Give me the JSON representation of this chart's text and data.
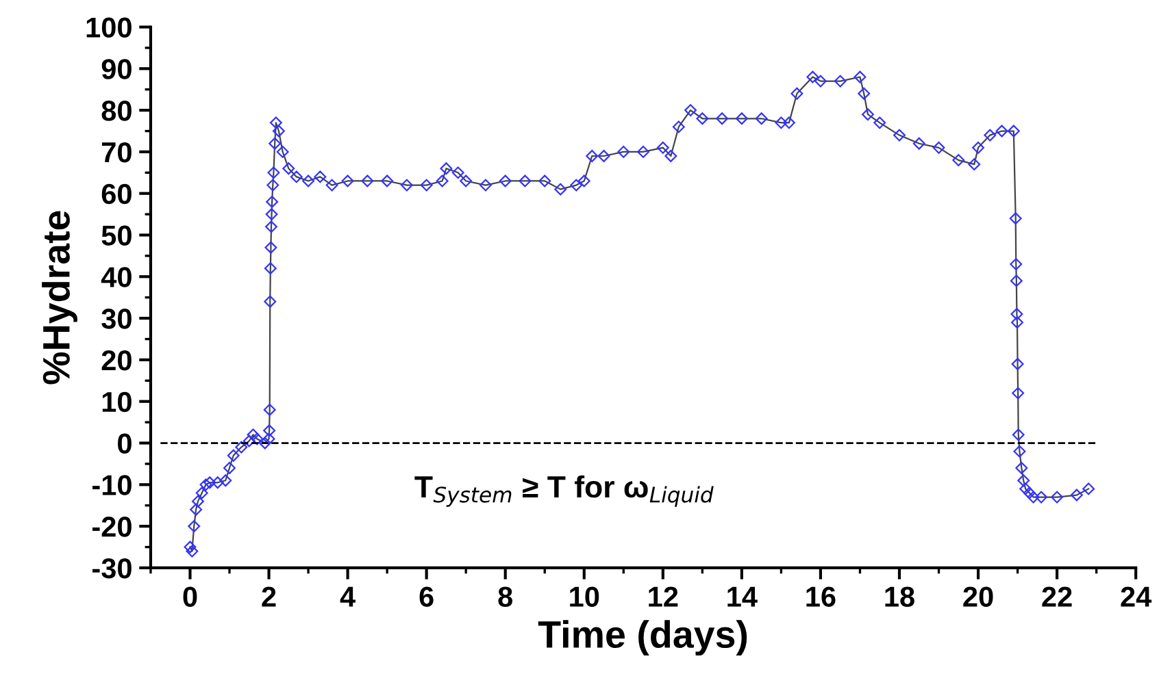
{
  "chart_data": {
    "type": "line",
    "xlabel": "Time (days)",
    "ylabel": "%Hydrate",
    "xlim": [
      -1,
      24
    ],
    "ylim": [
      -30,
      100
    ],
    "xticks": [
      0,
      2,
      4,
      6,
      8,
      10,
      12,
      14,
      16,
      18,
      20,
      22,
      24
    ],
    "yticks": [
      -30,
      -20,
      -10,
      0,
      10,
      20,
      30,
      40,
      50,
      60,
      70,
      80,
      90,
      100
    ],
    "grid": false,
    "legend": false,
    "marker": "diamond",
    "line_style": "solid",
    "ref_lines": [
      {
        "axis": "y",
        "value": 0,
        "line_style": "dashed",
        "color": "#000000"
      }
    ],
    "annotations": [
      {
        "text": "T$_{System}$ ≥ T for ω$_{Liquid}$"
      }
    ],
    "series": [
      {
        "color": "#3333ff",
        "x": [
          0.0,
          0.05,
          0.1,
          0.15,
          0.2,
          0.3,
          0.4,
          0.5,
          0.7,
          0.9,
          1.0,
          1.1,
          1.3,
          1.5,
          1.6,
          1.7,
          1.9,
          2.0,
          2.01,
          2.02,
          2.03,
          2.04,
          2.05,
          2.06,
          2.07,
          2.08,
          2.1,
          2.12,
          2.15,
          2.18,
          2.25,
          2.35,
          2.5,
          2.7,
          3.0,
          3.3,
          3.6,
          4.0,
          4.5,
          5.0,
          5.5,
          6.0,
          6.4,
          6.5,
          6.8,
          7.0,
          7.5,
          8.0,
          8.5,
          9.0,
          9.4,
          9.8,
          10.0,
          10.2,
          10.5,
          11.0,
          11.5,
          12.0,
          12.2,
          12.4,
          12.7,
          13.0,
          13.5,
          14.0,
          14.5,
          15.0,
          15.2,
          15.4,
          15.8,
          16.0,
          16.5,
          17.0,
          17.1,
          17.2,
          17.5,
          18.0,
          18.5,
          19.0,
          19.5,
          19.9,
          20.0,
          20.3,
          20.6,
          20.9,
          20.95,
          20.96,
          20.97,
          20.98,
          20.99,
          21.0,
          21.01,
          21.02,
          21.05,
          21.1,
          21.15,
          21.2,
          21.3,
          21.4,
          21.6,
          22.0,
          22.5,
          22.8
        ],
        "values": [
          -25,
          -26,
          -20,
          -16,
          -14,
          -12,
          -10,
          -9.5,
          -9.5,
          -9,
          -6,
          -3,
          -1,
          0.5,
          2,
          1,
          0,
          1,
          3,
          8,
          34,
          42,
          47,
          52,
          55,
          58,
          62,
          65,
          72,
          77,
          75,
          70,
          66,
          64,
          63,
          64,
          62,
          63,
          63,
          63,
          62,
          62,
          63,
          66,
          65,
          63,
          62,
          63,
          63,
          63,
          61,
          62,
          63,
          69,
          69,
          70,
          70,
          71,
          69,
          76,
          80,
          78,
          78,
          78,
          78,
          77,
          77,
          84,
          88,
          87,
          87,
          88,
          84,
          79,
          77,
          74,
          72,
          71,
          68,
          67,
          71,
          74,
          75,
          75,
          54,
          43,
          39,
          31,
          29,
          19,
          12,
          2,
          -2,
          -6,
          -9,
          -11,
          -12,
          -13,
          -13,
          -13,
          -12.5,
          -11
        ]
      }
    ]
  }
}
